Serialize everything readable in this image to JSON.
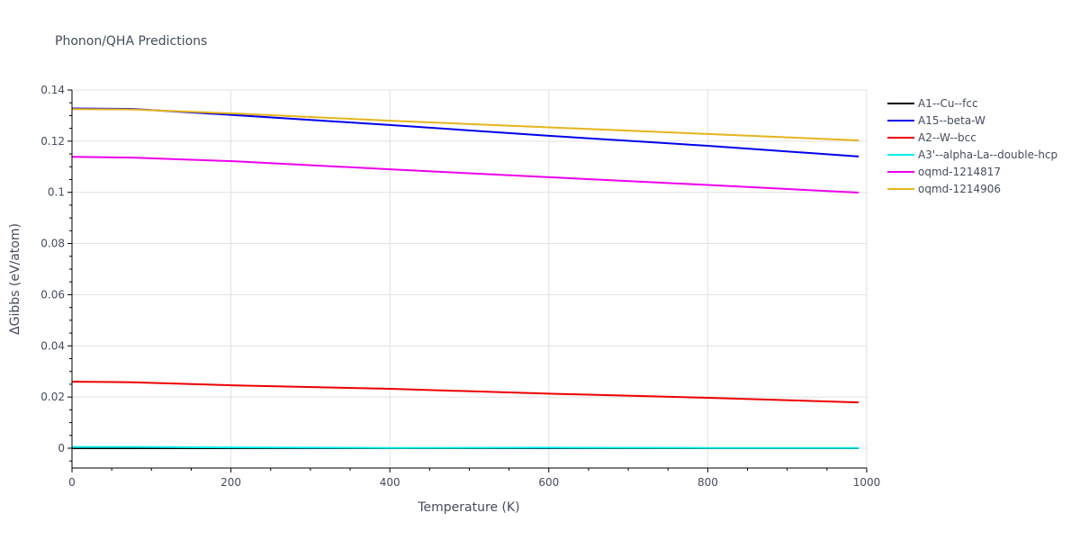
{
  "chart_data": {
    "type": "line",
    "title": "Phonon/QHA Predictions",
    "xlabel": "Temperature (K)",
    "ylabel": "ΔGibbs (eV/atom)",
    "xlim": [
      0,
      1000
    ],
    "ylim": [
      -0.008,
      0.14
    ],
    "x_ticks": [
      0,
      200,
      400,
      600,
      800,
      1000
    ],
    "x_tick_labels": [
      "0",
      "200",
      "400",
      "600",
      "800",
      "1000"
    ],
    "y_ticks": [
      0,
      0.02,
      0.04,
      0.06,
      0.08,
      0.1,
      0.12,
      0.14
    ],
    "y_tick_labels": [
      "0",
      "0.02",
      "0.04",
      "0.06",
      "0.08",
      "0.1",
      "0.12",
      "0.14"
    ],
    "grid": true,
    "legend_position": "right",
    "x": [
      0,
      75,
      200,
      400,
      600,
      800,
      990
    ],
    "series": [
      {
        "name": "A1--Cu--fcc",
        "color": "#000000",
        "values": [
          0.0,
          0.0,
          0.0,
          0.0,
          0.0,
          0.0,
          0.0
        ]
      },
      {
        "name": "A15--beta-W",
        "color": "#0000ee",
        "values": [
          0.1328,
          0.1326,
          0.1303,
          0.1263,
          0.1221,
          0.1182,
          0.114
        ]
      },
      {
        "name": "A2--W--bcc",
        "color": "#ee0000",
        "values": [
          0.026,
          0.0258,
          0.0246,
          0.0232,
          0.0213,
          0.0197,
          0.0179
        ]
      },
      {
        "name": "A3'--alpha-La--double-hcp",
        "color": "#00eeee",
        "values": [
          0.0005,
          0.0005,
          0.0003,
          0.0001,
          0.0002,
          0.0001,
          0.0001
        ]
      },
      {
        "name": "oqmd-1214817",
        "color": "#ee00ee",
        "values": [
          0.1139,
          0.1136,
          0.1122,
          0.109,
          0.1059,
          0.1029,
          0.0999
        ]
      },
      {
        "name": "oqmd-1214906",
        "color": "#e6b41e",
        "values": [
          0.1325,
          0.1324,
          0.1309,
          0.128,
          0.1254,
          0.1228,
          0.1203
        ]
      }
    ]
  }
}
